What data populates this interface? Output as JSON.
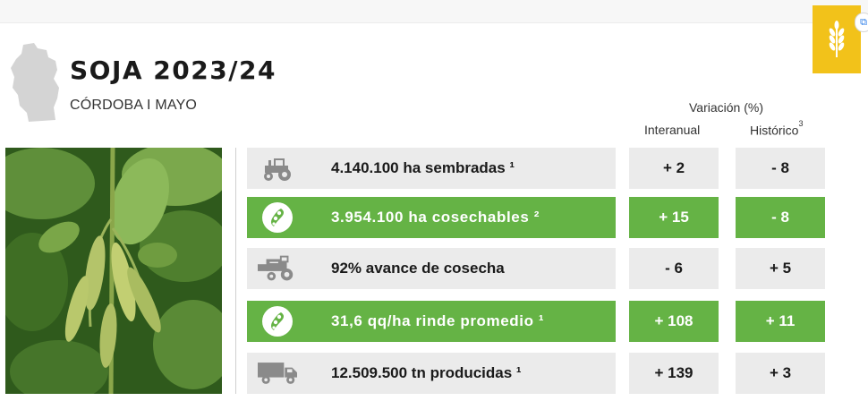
{
  "header": {
    "title": "SOJA 2023/24",
    "subtitle": "CÓRDOBA I MAYO"
  },
  "badge": {
    "icon": "wheat-icon",
    "color": "#f2c21a"
  },
  "corner_button": {
    "icon": "expand-icon",
    "glyph": "⧉"
  },
  "variation": {
    "title": "Variación (%)",
    "col_interanual": "Interanual",
    "col_historico": "Histórico",
    "col_historico_note": "3"
  },
  "rows": [
    {
      "icon": "tractor-icon",
      "label": "4.140.100 ha sembradas ¹",
      "interanual": "+ 2",
      "historico": "- 8",
      "highlight": false
    },
    {
      "icon": "soy-pod-icon",
      "label": "3.954.100 ha cosechables ²",
      "interanual": "+ 15",
      "historico": "- 8",
      "highlight": true
    },
    {
      "icon": "harvester-icon",
      "label": "92% avance de cosecha",
      "interanual": "- 6",
      "historico": "+ 5",
      "highlight": false
    },
    {
      "icon": "soy-pod-icon",
      "label": "31,6 qq/ha rinde promedio ¹",
      "interanual": "+ 108",
      "historico": "+ 11",
      "highlight": true
    },
    {
      "icon": "truck-icon",
      "label": "12.509.500 tn producidas ¹",
      "interanual": "+ 139",
      "historico": "+ 3",
      "highlight": false
    }
  ],
  "colors": {
    "green": "#65b345",
    "grey": "#ebebeb",
    "yellow": "#f2c21a"
  }
}
